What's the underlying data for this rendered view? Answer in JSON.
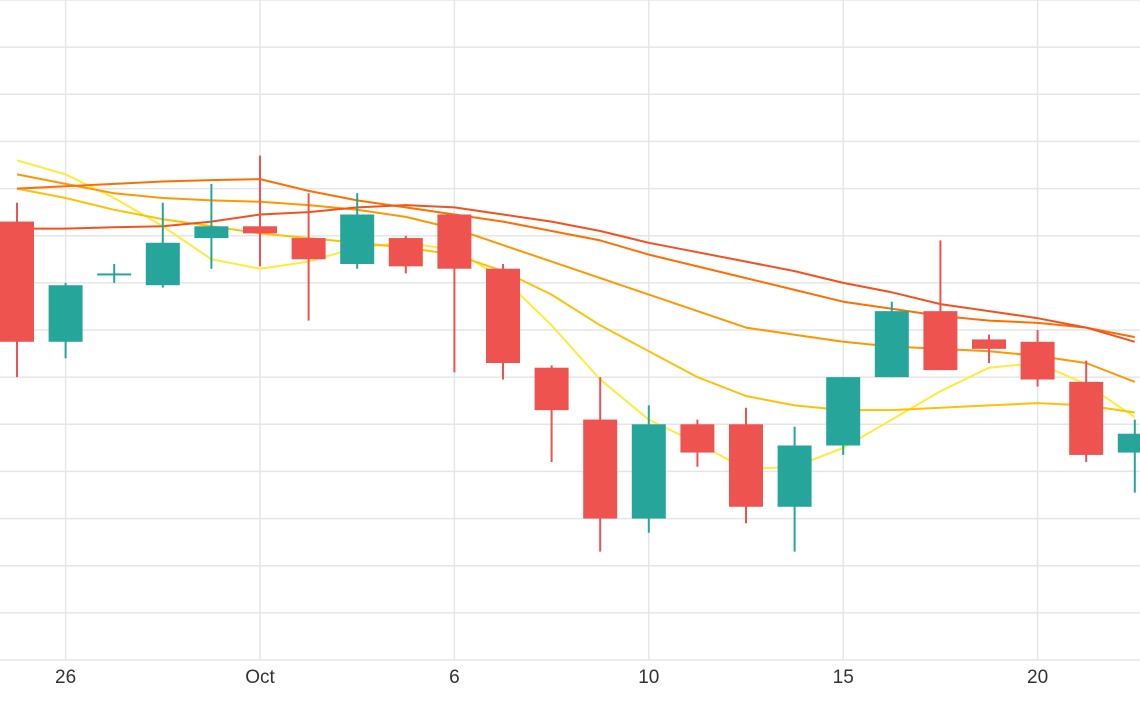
{
  "chart_data": {
    "type": "candlestick",
    "x_tick_labels": [
      {
        "label": "26",
        "bar": 1
      },
      {
        "label": "Oct",
        "bar": 5
      },
      {
        "label": "6",
        "bar": 9
      },
      {
        "label": "10",
        "bar": 13
      },
      {
        "label": "15",
        "bar": 17
      },
      {
        "label": "20",
        "bar": 21
      }
    ],
    "y_range": [
      0,
      14
    ],
    "grid": true,
    "colors": {
      "up": "#26a69a",
      "down": "#ef5350",
      "grid": "#e6e6e6",
      "background": "#ffffff"
    },
    "candles": [
      {
        "open": 9.3,
        "high": 9.7,
        "low": 6.0,
        "close": 6.75
      },
      {
        "open": 6.75,
        "high": 8.0,
        "low": 6.4,
        "close": 7.95
      },
      {
        "open": 8.2,
        "high": 8.4,
        "low": 8.0,
        "close": 8.2
      },
      {
        "open": 7.95,
        "high": 9.7,
        "low": 7.9,
        "close": 8.85
      },
      {
        "open": 8.95,
        "high": 10.1,
        "low": 8.3,
        "close": 9.2
      },
      {
        "open": 9.2,
        "high": 10.7,
        "low": 8.35,
        "close": 9.05
      },
      {
        "open": 8.95,
        "high": 9.9,
        "low": 7.2,
        "close": 8.5
      },
      {
        "open": 8.4,
        "high": 9.9,
        "low": 8.3,
        "close": 9.45
      },
      {
        "open": 8.95,
        "high": 9.0,
        "low": 8.2,
        "close": 8.35
      },
      {
        "open": 9.45,
        "high": 9.45,
        "low": 6.1,
        "close": 8.3
      },
      {
        "open": 8.3,
        "high": 8.4,
        "low": 5.95,
        "close": 6.3
      },
      {
        "open": 6.2,
        "high": 6.25,
        "low": 4.2,
        "close": 5.3
      },
      {
        "open": 5.1,
        "high": 6.0,
        "low": 2.3,
        "close": 3.0
      },
      {
        "open": 3.0,
        "high": 5.4,
        "low": 2.7,
        "close": 5.0
      },
      {
        "open": 5.0,
        "high": 5.1,
        "low": 4.1,
        "close": 4.4
      },
      {
        "open": 5.0,
        "high": 5.35,
        "low": 2.9,
        "close": 3.25
      },
      {
        "open": 3.25,
        "high": 4.95,
        "low": 2.3,
        "close": 4.55
      },
      {
        "open": 4.55,
        "high": 6.0,
        "low": 4.35,
        "close": 6.0
      },
      {
        "open": 6.0,
        "high": 7.6,
        "low": 6.0,
        "close": 7.4
      },
      {
        "open": 7.4,
        "high": 8.9,
        "low": 6.15,
        "close": 6.15
      },
      {
        "open": 6.8,
        "high": 6.9,
        "low": 6.3,
        "close": 6.6
      },
      {
        "open": 6.75,
        "high": 7.0,
        "low": 5.8,
        "close": 5.95
      },
      {
        "open": 5.9,
        "high": 6.35,
        "low": 4.2,
        "close": 4.35
      },
      {
        "open": 4.4,
        "high": 5.1,
        "low": 3.55,
        "close": 4.8
      }
    ],
    "moving_averages": [
      {
        "color": "#ffeb3b",
        "values": [
          10.6,
          10.3,
          9.8,
          9.2,
          8.5,
          8.3,
          8.45,
          8.75,
          8.85,
          8.7,
          8.1,
          7.1,
          5.95,
          5.1,
          4.6,
          4.05,
          4.1,
          4.5,
          5.1,
          5.7,
          6.2,
          6.3,
          5.85,
          5.15
        ]
      },
      {
        "color": "#ffc107",
        "values": [
          10.0,
          9.8,
          9.55,
          9.35,
          9.2,
          9.05,
          8.95,
          8.85,
          8.75,
          8.6,
          8.25,
          7.75,
          7.1,
          6.55,
          6.0,
          5.6,
          5.4,
          5.3,
          5.3,
          5.35,
          5.4,
          5.45,
          5.4,
          5.25
        ]
      },
      {
        "color": "#ff9800",
        "values": [
          10.3,
          10.1,
          9.9,
          9.8,
          9.75,
          9.72,
          9.65,
          9.55,
          9.4,
          9.15,
          8.8,
          8.45,
          8.1,
          7.75,
          7.4,
          7.05,
          6.9,
          6.75,
          6.65,
          6.6,
          6.55,
          6.45,
          6.3,
          5.9
        ]
      },
      {
        "color": "#ff6f00",
        "values": [
          10.0,
          10.05,
          10.1,
          10.15,
          10.18,
          10.2,
          9.95,
          9.75,
          9.6,
          9.45,
          9.3,
          9.1,
          8.9,
          8.6,
          8.35,
          8.1,
          7.85,
          7.6,
          7.45,
          7.3,
          7.2,
          7.15,
          7.05,
          6.85
        ]
      },
      {
        "color": "#f4511e",
        "values": [
          9.15,
          9.15,
          9.18,
          9.2,
          9.3,
          9.45,
          9.5,
          9.6,
          9.65,
          9.6,
          9.45,
          9.3,
          9.1,
          8.85,
          8.65,
          8.45,
          8.25,
          8.0,
          7.8,
          7.55,
          7.4,
          7.25,
          7.05,
          6.75
        ]
      }
    ]
  }
}
